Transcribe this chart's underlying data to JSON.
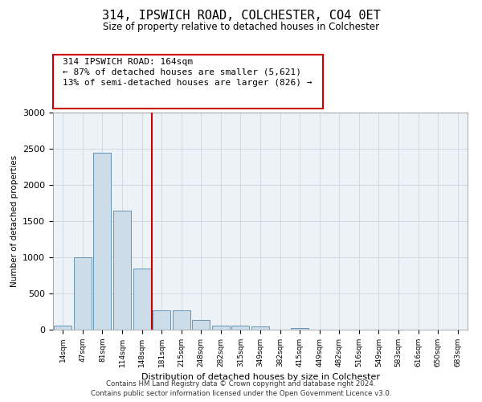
{
  "title": "314, IPSWICH ROAD, COLCHESTER, CO4 0ET",
  "subtitle": "Size of property relative to detached houses in Colchester",
  "xlabel": "Distribution of detached houses by size in Colchester",
  "ylabel": "Number of detached properties",
  "categories": [
    "14sqm",
    "47sqm",
    "81sqm",
    "114sqm",
    "148sqm",
    "181sqm",
    "215sqm",
    "248sqm",
    "282sqm",
    "315sqm",
    "349sqm",
    "382sqm",
    "415sqm",
    "449sqm",
    "482sqm",
    "516sqm",
    "549sqm",
    "583sqm",
    "616sqm",
    "650sqm",
    "683sqm"
  ],
  "values": [
    60,
    1000,
    2450,
    1650,
    850,
    270,
    265,
    130,
    60,
    55,
    45,
    0,
    25,
    0,
    0,
    0,
    0,
    0,
    0,
    0,
    0
  ],
  "bar_color": "#ccdce8",
  "bar_edge_color": "#5588aa",
  "vline_color": "#cc0000",
  "annotation_text": "314 IPSWICH ROAD: 164sqm\n← 87% of detached houses are smaller (5,621)\n13% of semi-detached houses are larger (826) →",
  "annotation_box_color": "#ffffff",
  "annotation_box_edge_color": "#cc0000",
  "ylim": [
    0,
    3000
  ],
  "yticks": [
    0,
    500,
    1000,
    1500,
    2000,
    2500,
    3000
  ],
  "footer1": "Contains HM Land Registry data © Crown copyright and database right 2024.",
  "footer2": "Contains public sector information licensed under the Open Government Licence v3.0.",
  "bg_color": "#edf2f7",
  "grid_color": "#d0dae4"
}
